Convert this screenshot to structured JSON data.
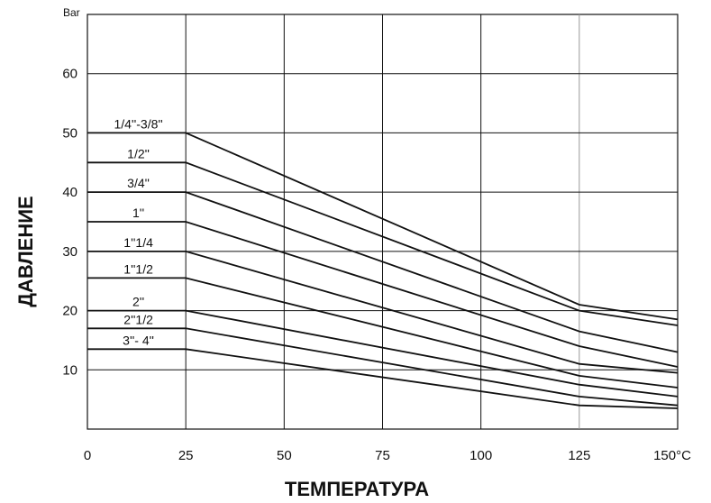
{
  "chart_data": {
    "type": "line",
    "x_unit_label": "150°C",
    "y_unit_label": "Bar",
    "xlabel": "ТЕМПЕРАТУРА",
    "ylabel": "ДАВЛЕНИЕ",
    "xlim": [
      0,
      150
    ],
    "ylim": [
      0,
      70
    ],
    "x_ticks": [
      0,
      25,
      50,
      75,
      100,
      125,
      150
    ],
    "x_tick_labels": [
      "0",
      "25",
      "50",
      "75",
      "100",
      "125",
      "150°C"
    ],
    "y_ticks": [
      10,
      20,
      30,
      40,
      50,
      60
    ],
    "y_tick_labels": [
      "10",
      "20",
      "30",
      "40",
      "50",
      "60"
    ],
    "grid": true,
    "series": [
      {
        "name": "1/4''-3/8''",
        "points": [
          [
            0,
            50
          ],
          [
            25,
            50
          ],
          [
            125,
            21
          ],
          [
            150,
            18.5
          ]
        ]
      },
      {
        "name": "1/2''",
        "points": [
          [
            0,
            45
          ],
          [
            25,
            45
          ],
          [
            125,
            20
          ],
          [
            150,
            17.5
          ]
        ]
      },
      {
        "name": "3/4''",
        "points": [
          [
            0,
            40
          ],
          [
            25,
            40
          ],
          [
            125,
            16.5
          ],
          [
            150,
            13
          ]
        ]
      },
      {
        "name": "1''",
        "points": [
          [
            0,
            35
          ],
          [
            25,
            35
          ],
          [
            125,
            14
          ],
          [
            150,
            10.5
          ]
        ]
      },
      {
        "name": "1''1/4",
        "points": [
          [
            0,
            30
          ],
          [
            25,
            30
          ],
          [
            125,
            11
          ],
          [
            150,
            9.5
          ]
        ]
      },
      {
        "name": "1''1/2",
        "points": [
          [
            0,
            25.5
          ],
          [
            25,
            25.5
          ],
          [
            125,
            9
          ],
          [
            150,
            7
          ]
        ]
      },
      {
        "name": "2''",
        "points": [
          [
            0,
            20
          ],
          [
            25,
            20
          ],
          [
            125,
            7.5
          ],
          [
            150,
            5.5
          ]
        ]
      },
      {
        "name": "2''1/2",
        "points": [
          [
            0,
            17
          ],
          [
            25,
            17
          ],
          [
            125,
            5.5
          ],
          [
            150,
            4
          ]
        ]
      },
      {
        "name": "3''- 4''",
        "points": [
          [
            0,
            13.5
          ],
          [
            25,
            13.5
          ],
          [
            125,
            4
          ],
          [
            150,
            3.5
          ]
        ]
      }
    ]
  }
}
